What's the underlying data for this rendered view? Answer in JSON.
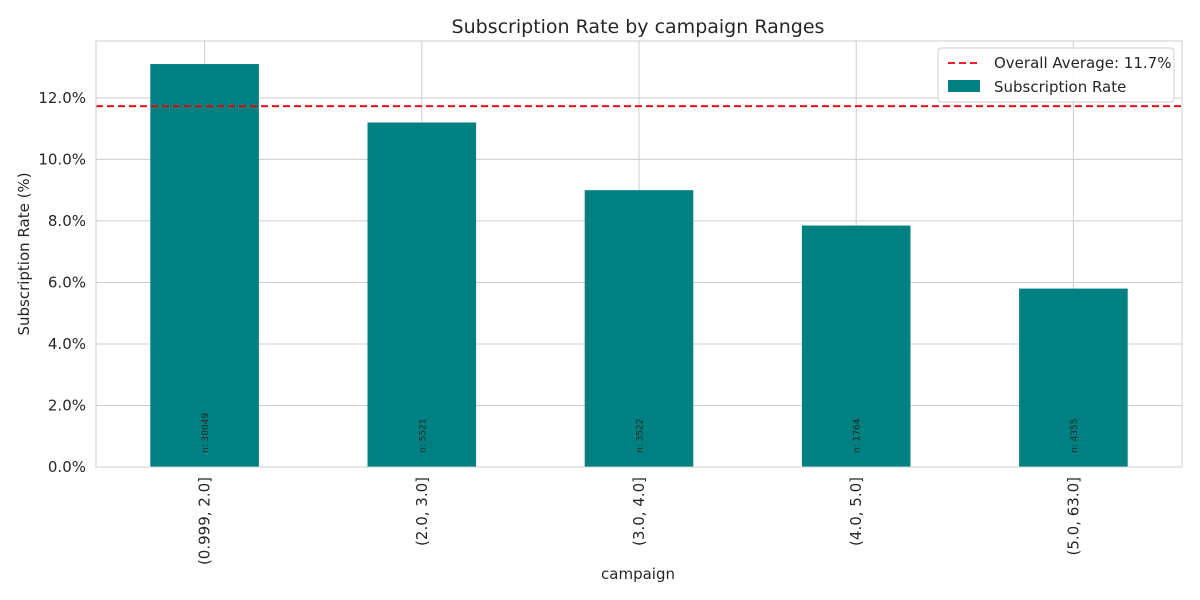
{
  "chart_data": {
    "type": "bar",
    "title": "Subscription Rate by campaign Ranges",
    "xlabel": "campaign",
    "ylabel": "Subscription Rate (%)",
    "categories": [
      "(0.999, 2.0]",
      "(2.0, 3.0]",
      "(3.0, 4.0]",
      "(4.0, 5.0]",
      "(5.0, 63.0]"
    ],
    "series": [
      {
        "name": "Subscription Rate",
        "values": [
          13.1,
          11.2,
          9.0,
          7.85,
          5.8
        ],
        "color": "#008080"
      }
    ],
    "count_labels": [
      "n: 30049",
      "n: 5521",
      "n: 3522",
      "n: 1764",
      "n: 4355"
    ],
    "reference_line": {
      "label": "Overall Average: 11.7%",
      "value": 11.73,
      "color": "#e8000b",
      "style": "dashed"
    },
    "ylim": [
      0,
      13.85
    ],
    "yticks": [
      0,
      2,
      4,
      6,
      8,
      10,
      12
    ],
    "ytick_format": "percent_one_decimal",
    "grid": true,
    "legend_position": "top-right"
  }
}
